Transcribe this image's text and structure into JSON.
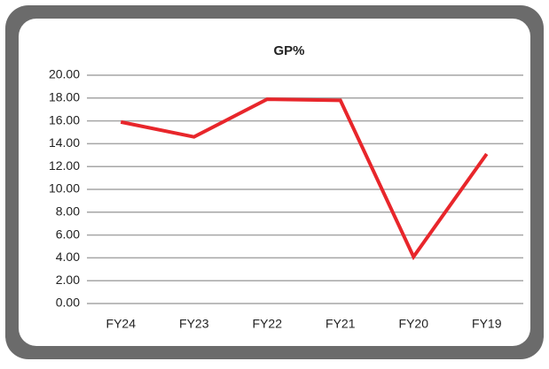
{
  "chart_data": {
    "type": "line",
    "title": "GP%",
    "categories": [
      "FY24",
      "FY23",
      "FY22",
      "FY21",
      "FY20",
      "FY19"
    ],
    "series": [
      {
        "name": "GP%",
        "color": "#e8262b",
        "values": [
          15.9,
          14.6,
          17.9,
          17.8,
          4.1,
          13.1
        ]
      }
    ],
    "ylim": [
      0,
      20
    ],
    "yticks": [
      {
        "value": 0,
        "label": "0.00"
      },
      {
        "value": 2,
        "label": "2.00"
      },
      {
        "value": 4,
        "label": "4.00"
      },
      {
        "value": 6,
        "label": "6.00"
      },
      {
        "value": 8,
        "label": "8.00"
      },
      {
        "value": 10,
        "label": "10.00"
      },
      {
        "value": 12,
        "label": "12.00"
      },
      {
        "value": 14,
        "label": "14.00"
      },
      {
        "value": 16,
        "label": "16.00"
      },
      {
        "value": 18,
        "label": "18.00"
      },
      {
        "value": 20,
        "label": "20.00"
      }
    ],
    "grid": true
  }
}
